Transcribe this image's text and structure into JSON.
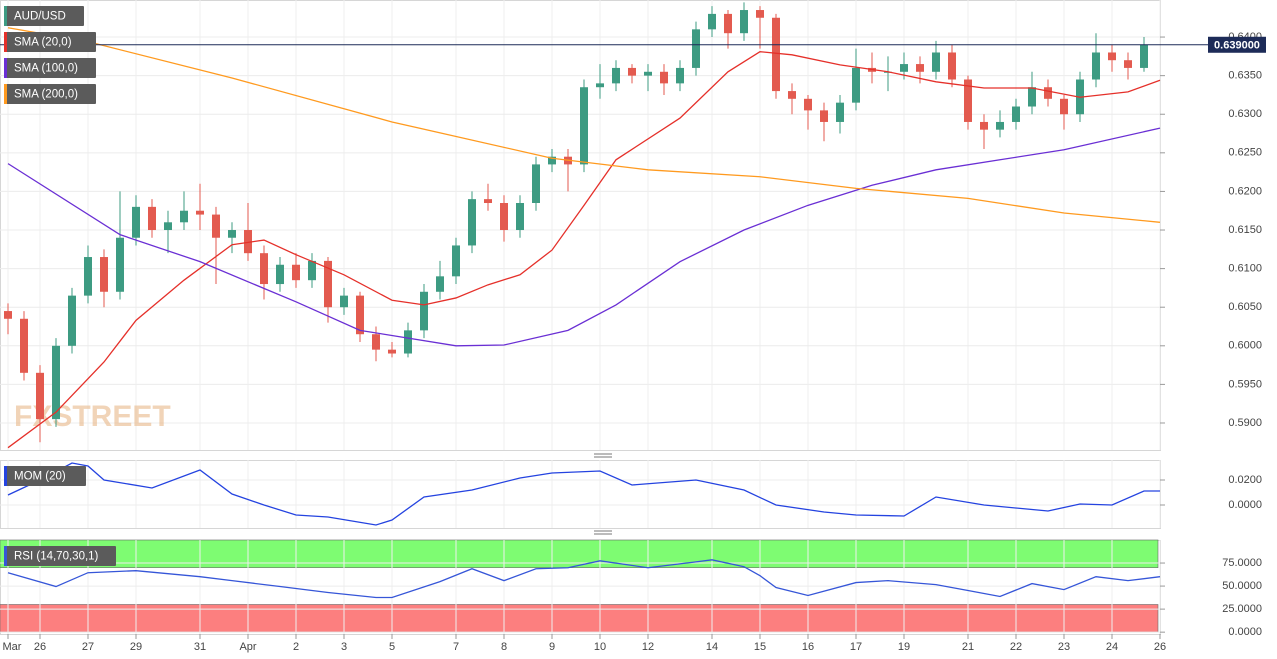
{
  "chart_data": [
    {
      "type": "candlestick",
      "title": "AUD/USD",
      "watermark": "FXSTREET",
      "grid": true,
      "up_color": "#3d9b82",
      "down_color": "#e35a4f",
      "categories": [
        "Mar",
        null,
        "26",
        null,
        null,
        "27",
        null,
        null,
        "29",
        null,
        null,
        null,
        "31",
        null,
        null,
        "Apr",
        null,
        null,
        "2",
        null,
        null,
        "3",
        null,
        null,
        "5",
        null,
        null,
        null,
        "7",
        null,
        null,
        "8",
        null,
        null,
        "9",
        null,
        null,
        "10",
        null,
        null,
        "12",
        null,
        null,
        null,
        "14",
        null,
        null,
        "15",
        null,
        null,
        "16",
        null,
        null,
        "17",
        null,
        null,
        "19",
        null,
        null,
        null,
        "21",
        null,
        null,
        "22",
        null,
        null,
        "23",
        null,
        null,
        "24",
        null,
        null,
        "26"
      ],
      "open": [
        0.6045,
        0.6035,
        0.5965,
        0.5905,
        0.6,
        0.6065,
        0.6115,
        0.607,
        0.614,
        0.618,
        0.615,
        0.616,
        0.6175,
        0.617,
        0.614,
        0.615,
        0.612,
        0.608,
        0.6105,
        0.6085,
        0.611,
        0.605,
        0.6065,
        0.6015,
        0.5995,
        0.599,
        0.602,
        0.607,
        0.609,
        0.613,
        0.619,
        0.6185,
        0.615,
        0.6185,
        0.6235,
        0.6245,
        0.6235,
        0.6335,
        0.634,
        0.636,
        0.635,
        0.6355,
        0.634,
        0.636,
        0.641,
        0.643,
        0.6405,
        0.6435,
        0.6425,
        0.633,
        0.632,
        0.6305,
        0.629,
        0.6315,
        0.636,
        0.6355,
        0.6355,
        0.6365,
        0.6355,
        0.638,
        0.6345,
        0.629,
        0.628,
        0.629,
        0.631,
        0.6335,
        0.632,
        0.63,
        0.6345,
        0.638,
        0.637,
        0.636,
        null
      ],
      "high": [
        0.6055,
        0.6045,
        0.5975,
        0.601,
        0.6075,
        0.613,
        0.6125,
        0.62,
        0.6195,
        0.619,
        0.6175,
        0.62,
        0.621,
        0.618,
        0.616,
        0.6185,
        0.613,
        0.6115,
        0.612,
        0.612,
        0.6115,
        0.6075,
        0.607,
        0.6025,
        0.6005,
        0.603,
        0.608,
        0.611,
        0.614,
        0.62,
        0.621,
        0.6195,
        0.6195,
        0.6245,
        0.6255,
        0.6255,
        0.6345,
        0.6365,
        0.637,
        0.6365,
        0.6365,
        0.6365,
        0.637,
        0.642,
        0.644,
        0.6435,
        0.6445,
        0.644,
        0.643,
        0.634,
        0.6325,
        0.6315,
        0.6325,
        0.6385,
        0.638,
        0.6375,
        0.638,
        0.6375,
        0.6395,
        0.639,
        0.635,
        0.63,
        0.6305,
        0.632,
        0.6355,
        0.6345,
        0.6325,
        0.6355,
        0.6405,
        0.639,
        0.638,
        0.64,
        null
      ],
      "low": [
        0.6015,
        0.5955,
        0.5875,
        0.5895,
        0.599,
        0.6055,
        0.605,
        0.606,
        0.613,
        0.614,
        0.612,
        0.615,
        0.615,
        0.608,
        0.612,
        0.611,
        0.606,
        0.607,
        0.6075,
        0.6075,
        0.603,
        0.604,
        0.6005,
        0.598,
        0.5985,
        0.5985,
        0.601,
        0.606,
        0.608,
        0.612,
        0.6175,
        0.6135,
        0.614,
        0.6175,
        0.6225,
        0.62,
        0.6225,
        0.632,
        0.633,
        0.634,
        0.633,
        0.6325,
        0.633,
        0.635,
        0.64,
        0.6385,
        0.6395,
        0.6385,
        0.632,
        0.63,
        0.628,
        0.6265,
        0.6275,
        0.6305,
        0.634,
        0.633,
        0.6345,
        0.634,
        0.6345,
        0.6335,
        0.628,
        0.6255,
        0.627,
        0.628,
        0.63,
        0.631,
        0.628,
        0.629,
        0.6335,
        0.6355,
        0.6345,
        0.6355,
        null
      ],
      "close": [
        0.6035,
        0.5965,
        0.5905,
        0.6,
        0.6065,
        0.6115,
        0.607,
        0.614,
        0.618,
        0.615,
        0.616,
        0.6175,
        0.617,
        0.614,
        0.615,
        0.612,
        0.608,
        0.6105,
        0.6085,
        0.611,
        0.605,
        0.6065,
        0.6015,
        0.5995,
        0.599,
        0.602,
        0.607,
        0.609,
        0.613,
        0.619,
        0.6185,
        0.615,
        0.6185,
        0.6235,
        0.6245,
        0.6235,
        0.6335,
        0.634,
        0.636,
        0.635,
        0.6355,
        0.634,
        0.636,
        0.641,
        0.643,
        0.6405,
        0.6435,
        0.6425,
        0.633,
        0.632,
        0.6305,
        0.629,
        0.6315,
        0.636,
        0.6355,
        0.6355,
        0.6365,
        0.6355,
        0.638,
        0.6345,
        0.629,
        0.628,
        0.629,
        0.631,
        0.6335,
        0.632,
        0.63,
        0.6345,
        0.638,
        0.637,
        0.636,
        0.639,
        null
      ],
      "series": [
        {
          "name": "SMA (20,0)",
          "color": "#e5302a",
          "x": [
            0,
            3,
            6,
            8,
            11,
            14,
            16,
            18,
            21,
            24,
            26,
            28,
            30,
            32,
            34,
            36,
            38,
            42,
            45,
            47,
            49,
            52,
            55,
            58,
            61,
            64,
            67,
            70,
            72
          ],
          "values": [
            0.5868,
            0.5914,
            0.5979,
            0.6033,
            0.6085,
            0.6131,
            0.6137,
            0.6118,
            0.6092,
            0.6059,
            0.6053,
            0.6062,
            0.6079,
            0.6092,
            0.6124,
            0.6182,
            0.6241,
            0.6295,
            0.6355,
            0.6381,
            0.6377,
            0.6364,
            0.6355,
            0.6342,
            0.6334,
            0.6334,
            0.6322,
            0.6329,
            0.6344
          ]
        },
        {
          "name": "SMA (100,0)",
          "color": "#6a2fd4",
          "x": [
            0,
            7,
            12,
            18,
            22,
            28,
            31,
            35,
            38,
            42,
            46,
            50,
            54,
            58,
            62,
            66,
            72
          ],
          "values": [
            0.6236,
            0.6144,
            0.6109,
            0.6057,
            0.602,
            0.6,
            0.6001,
            0.602,
            0.6053,
            0.6109,
            0.615,
            0.6182,
            0.6208,
            0.6228,
            0.6241,
            0.6254,
            0.6282
          ]
        },
        {
          "name": "SMA (200,0)",
          "color": "#ff9a1f",
          "x": [
            0,
            5,
            14,
            24,
            34,
            40,
            47,
            53,
            60,
            66,
            72
          ],
          "values": [
            0.6412,
            0.6394,
            0.6347,
            0.629,
            0.6243,
            0.6228,
            0.6219,
            0.6204,
            0.6191,
            0.6172,
            0.616
          ]
        }
      ],
      "ylim": [
        0.5865,
        0.6448
      ],
      "yticks": [
        {
          "value": 0.59,
          "label": "0.5900"
        },
        {
          "value": 0.595,
          "label": "0.5950"
        },
        {
          "value": 0.6,
          "label": "0.6000"
        },
        {
          "value": 0.605,
          "label": "0.6050"
        },
        {
          "value": 0.61,
          "label": "0.6100"
        },
        {
          "value": 0.615,
          "label": "0.6150"
        },
        {
          "value": 0.62,
          "label": "0.6200"
        },
        {
          "value": 0.625,
          "label": "0.6250"
        },
        {
          "value": 0.63,
          "label": "0.6300"
        },
        {
          "value": 0.635,
          "label": "0.6350"
        },
        {
          "value": 0.64,
          "label": "0.6400"
        }
      ],
      "last_price": {
        "value": 0.639,
        "label": "0.639000"
      }
    },
    {
      "type": "line",
      "grid": true,
      "series": [
        {
          "name": "MOM (20)",
          "color": "#2443e0",
          "x": [
            0,
            2,
            4,
            5,
            6,
            9,
            12,
            14,
            16,
            18,
            20,
            23,
            24,
            26,
            29,
            32,
            34,
            37,
            39,
            43,
            46,
            48,
            51,
            53,
            56,
            58,
            61,
            65,
            67,
            69,
            71,
            72
          ],
          "values": [
            0.008,
            0.02,
            0.0336,
            0.0312,
            0.02,
            0.0136,
            0.028,
            0.0088,
            0,
            -0.008,
            -0.0096,
            -0.016,
            -0.012,
            0.0064,
            0.012,
            0.0216,
            0.0256,
            0.0272,
            0.016,
            0.02,
            0.012,
            0,
            -0.0056,
            -0.008,
            -0.0088,
            0.0064,
            0,
            -0.0048,
            0.0008,
            0,
            0.0112,
            0.0112
          ]
        }
      ],
      "ylim": [
        -0.0184,
        0.036
      ],
      "yticks": [
        {
          "value": 0,
          "label": "0.0000"
        },
        {
          "value": 0.02,
          "label": "0.0200"
        }
      ]
    },
    {
      "type": "line",
      "grid": true,
      "bands": [
        {
          "from": 70,
          "to": 100,
          "color": "#7efc72"
        },
        {
          "from": 0,
          "to": 30,
          "color": "#fc7f7f"
        }
      ],
      "series": [
        {
          "name": "RSI (14,70,30,1)",
          "color": "#3656d8",
          "x": [
            0,
            3,
            5,
            8,
            12,
            14,
            17,
            20,
            23,
            24,
            27,
            29,
            31,
            33,
            35,
            37,
            40,
            43,
            44,
            46,
            47,
            48,
            50,
            53,
            55,
            58,
            60,
            62,
            64,
            66,
            68,
            70,
            72
          ],
          "values": [
            64.5,
            49.5,
            64.5,
            66.7,
            60.2,
            55.9,
            49.5,
            43.0,
            37.6,
            37.6,
            54.8,
            68.8,
            55.9,
            68.8,
            69.9,
            77.4,
            69.9,
            76.3,
            78.5,
            71.0,
            61.3,
            48.4,
            39.8,
            53.8,
            55.9,
            51.6,
            45.2,
            38.7,
            52.7,
            46.2,
            60.2,
            55.9,
            60.2
          ]
        }
      ],
      "ylim": [
        -2,
        100
      ],
      "yticks": [
        {
          "value": 0,
          "label": "0.0000"
        },
        {
          "value": 25,
          "label": "25.0000"
        },
        {
          "value": 50,
          "label": "50.0000"
        },
        {
          "value": 75,
          "label": "75.0000"
        }
      ]
    }
  ]
}
